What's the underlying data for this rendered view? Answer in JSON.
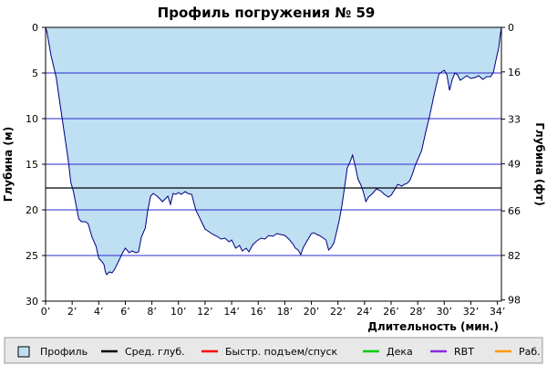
{
  "chart_data": {
    "type": "area",
    "title": "Профиль погружения № 59",
    "xlabel": "Длительность (мин.)",
    "ylabel_left": "Глубина (м)",
    "ylabel_right": "Глубина (фт)",
    "xlim": [
      0,
      34.3
    ],
    "ylim": [
      0,
      30
    ],
    "y_inverted": true,
    "grid": true,
    "x_ticks": [
      0,
      2,
      4,
      6,
      8,
      10,
      12,
      14,
      16,
      18,
      20,
      22,
      24,
      26,
      28,
      30,
      32,
      34
    ],
    "x_tick_labels": [
      "0’",
      "2’",
      "4’",
      "6’",
      "8’",
      "10’",
      "12’",
      "14’",
      "16’",
      "18’",
      "20’",
      "22’",
      "24’",
      "26’",
      "28’",
      "30’",
      "32’",
      "34’"
    ],
    "y_ticks_left": [
      0,
      5,
      10,
      15,
      20,
      25,
      30
    ],
    "y_tick_labels_left": [
      "0",
      "5",
      "10",
      "15",
      "20",
      "25",
      "30"
    ],
    "y_ticks_right_m": [
      0,
      4.88,
      10.06,
      14.94,
      20.12,
      24.99,
      29.87
    ],
    "y_tick_labels_right": [
      "0",
      "16",
      "33",
      "49",
      "66",
      "82",
      "98"
    ],
    "average_depth": 17.6,
    "colors": {
      "profile_fill": "#bfdff2",
      "profile_line": "#000080",
      "grid": "#2a2acf",
      "avg_line": "#000000",
      "fast_ascent": "#ff0000",
      "deco": "#00cc00",
      "rbt": "#8a2be2",
      "work": "#ff9900",
      "legend_bg": "#e8e8e8"
    },
    "series": [
      {
        "name": "Профиль",
        "points": [
          [
            0,
            0
          ],
          [
            0.1,
            0.5
          ],
          [
            0.4,
            3
          ],
          [
            0.8,
            5.5
          ],
          [
            1.1,
            8.5
          ],
          [
            1.4,
            11.5
          ],
          [
            1.7,
            14.5
          ],
          [
            1.9,
            17
          ],
          [
            2.1,
            18
          ],
          [
            2.3,
            19.5
          ],
          [
            2.5,
            21
          ],
          [
            2.7,
            21.3
          ],
          [
            3,
            21.3
          ],
          [
            3.2,
            21.5
          ],
          [
            3.5,
            23
          ],
          [
            3.8,
            24
          ],
          [
            4,
            25.3
          ],
          [
            4.2,
            25.6
          ],
          [
            4.4,
            26
          ],
          [
            4.5,
            26.8
          ],
          [
            4.6,
            27.1
          ],
          [
            4.8,
            26.8
          ],
          [
            5,
            26.9
          ],
          [
            5.2,
            26.5
          ],
          [
            5.5,
            25.6
          ],
          [
            5.8,
            24.7
          ],
          [
            6,
            24.2
          ],
          [
            6.3,
            24.7
          ],
          [
            6.5,
            24.5
          ],
          [
            6.8,
            24.7
          ],
          [
            7,
            24.6
          ],
          [
            7.2,
            23
          ],
          [
            7.5,
            22
          ],
          [
            7.7,
            20
          ],
          [
            7.9,
            18.5
          ],
          [
            8.1,
            18.2
          ],
          [
            8.4,
            18.5
          ],
          [
            8.6,
            18.8
          ],
          [
            8.8,
            19.1
          ],
          [
            9,
            18.8
          ],
          [
            9.2,
            18.5
          ],
          [
            9.4,
            19.4
          ],
          [
            9.6,
            18.2
          ],
          [
            9.8,
            18.3
          ],
          [
            10,
            18.1
          ],
          [
            10.2,
            18.3
          ],
          [
            10.5,
            18
          ],
          [
            10.7,
            18.2
          ],
          [
            11,
            18.3
          ],
          [
            11.3,
            20
          ],
          [
            11.7,
            21.2
          ],
          [
            12,
            22.1
          ],
          [
            12.3,
            22.4
          ],
          [
            12.6,
            22.7
          ],
          [
            12.9,
            22.9
          ],
          [
            13.2,
            23.2
          ],
          [
            13.5,
            23.1
          ],
          [
            13.8,
            23.5
          ],
          [
            14,
            23.3
          ],
          [
            14.3,
            24.2
          ],
          [
            14.6,
            23.9
          ],
          [
            14.8,
            24.5
          ],
          [
            15.1,
            24.2
          ],
          [
            15.3,
            24.6
          ],
          [
            15.6,
            23.8
          ],
          [
            15.9,
            23.4
          ],
          [
            16.2,
            23.1
          ],
          [
            16.5,
            23.2
          ],
          [
            16.8,
            22.8
          ],
          [
            17.1,
            22.9
          ],
          [
            17.4,
            22.6
          ],
          [
            17.7,
            22.7
          ],
          [
            18,
            22.8
          ],
          [
            18.3,
            23.2
          ],
          [
            18.6,
            23.7
          ],
          [
            18.8,
            24.2
          ],
          [
            19,
            24.4
          ],
          [
            19.2,
            24.9
          ],
          [
            19.4,
            24.1
          ],
          [
            19.6,
            23.6
          ],
          [
            19.8,
            23.1
          ],
          [
            20,
            22.6
          ],
          [
            20.2,
            22.5
          ],
          [
            20.4,
            22.7
          ],
          [
            20.6,
            22.8
          ],
          [
            20.9,
            23.1
          ],
          [
            21.1,
            23.3
          ],
          [
            21.3,
            24.4
          ],
          [
            21.5,
            24.1
          ],
          [
            21.7,
            23.6
          ],
          [
            21.9,
            22.4
          ],
          [
            22.1,
            21.1
          ],
          [
            22.3,
            19.5
          ],
          [
            22.5,
            17.5
          ],
          [
            22.7,
            15.4
          ],
          [
            22.9,
            14.8
          ],
          [
            23.1,
            14
          ],
          [
            23.3,
            15.2
          ],
          [
            23.5,
            16.6
          ],
          [
            23.7,
            17.2
          ],
          [
            23.9,
            18
          ],
          [
            24.1,
            19.1
          ],
          [
            24.3,
            18.6
          ],
          [
            24.6,
            18.2
          ],
          [
            24.9,
            17.7
          ],
          [
            25.2,
            17.9
          ],
          [
            25.5,
            18.3
          ],
          [
            25.8,
            18.6
          ],
          [
            26,
            18.4
          ],
          [
            26.3,
            17.7
          ],
          [
            26.5,
            17.2
          ],
          [
            26.8,
            17.4
          ],
          [
            27,
            17.2
          ],
          [
            27.2,
            17.1
          ],
          [
            27.4,
            16.8
          ],
          [
            27.6,
            16.1
          ],
          [
            27.8,
            15.2
          ],
          [
            28,
            14.5
          ],
          [
            28.3,
            13.5
          ],
          [
            28.6,
            11.5
          ],
          [
            28.9,
            9.7
          ],
          [
            29.2,
            7.6
          ],
          [
            29.4,
            6.3
          ],
          [
            29.6,
            5.1
          ],
          [
            29.8,
            4.9
          ],
          [
            30,
            4.7
          ],
          [
            30.2,
            5.2
          ],
          [
            30.4,
            6.9
          ],
          [
            30.6,
            5.7
          ],
          [
            30.8,
            5
          ],
          [
            31,
            5.2
          ],
          [
            31.2,
            5.8
          ],
          [
            31.4,
            5.6
          ],
          [
            31.7,
            5.3
          ],
          [
            32,
            5.6
          ],
          [
            32.3,
            5.5
          ],
          [
            32.6,
            5.3
          ],
          [
            32.9,
            5.7
          ],
          [
            33.2,
            5.4
          ],
          [
            33.5,
            5.4
          ],
          [
            33.7,
            4.9
          ],
          [
            33.9,
            3.5
          ],
          [
            34.1,
            2.2
          ],
          [
            34.2,
            1
          ],
          [
            34.3,
            0
          ]
        ]
      }
    ],
    "legend": {
      "placement": "bottom",
      "items": [
        {
          "label": "Профиль",
          "kind": "fill",
          "color": "#bfdff2"
        },
        {
          "label": "Сред. глуб.",
          "kind": "line",
          "color": "#000000"
        },
        {
          "label": "Быстр. подъем/спуск",
          "kind": "line",
          "color": "#ff0000"
        },
        {
          "label": "Дека",
          "kind": "line",
          "color": "#00cc00"
        },
        {
          "label": "RBT",
          "kind": "line",
          "color": "#8a2be2"
        },
        {
          "label": "Раб.",
          "kind": "line",
          "color": "#ff9900"
        }
      ]
    }
  }
}
